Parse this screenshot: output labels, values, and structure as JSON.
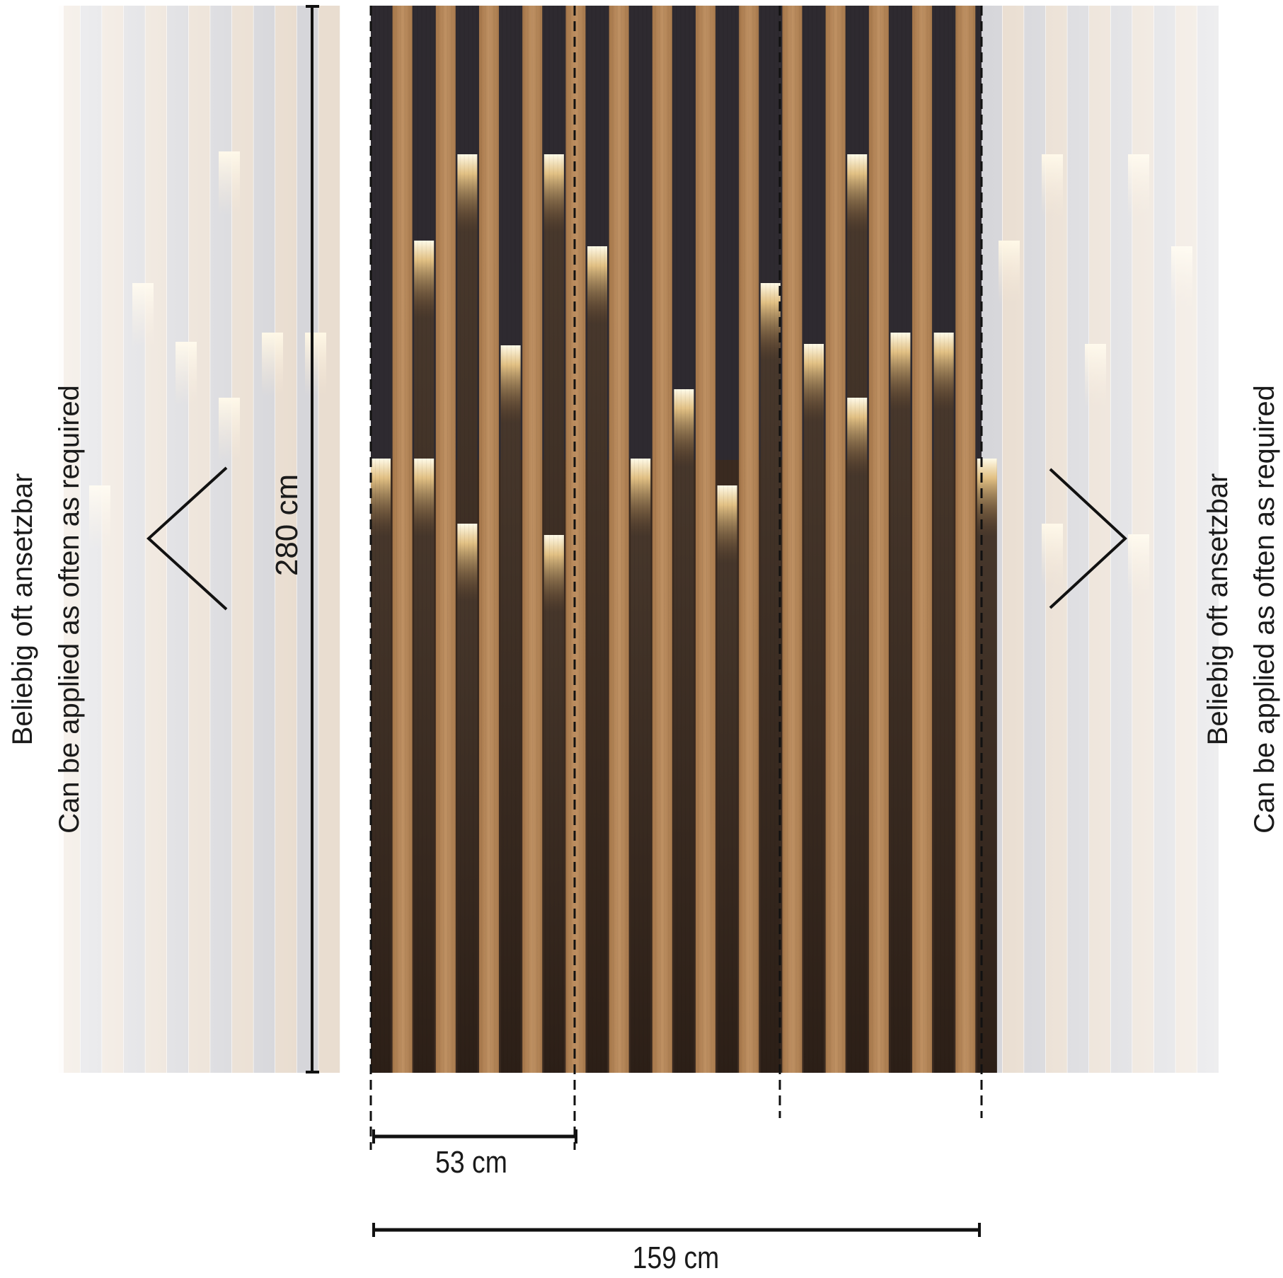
{
  "labels": {
    "left_line1": "Beliebig oft ansetzbar",
    "left_line2": "Can be applied as often as required",
    "right_line1": "Beliebig oft ansetzbar",
    "right_line2": "Can be applied as often as required"
  },
  "dimensions": {
    "height": "280 cm",
    "panel_width": "53 cm",
    "total_width": "159 cm"
  },
  "panels": {
    "count": 3
  },
  "colors": {
    "light_wood": "#b98a5a",
    "dark_wood": "#3d2b1f",
    "back_panel": "#2e2a30",
    "light_glow": "#fff6d8",
    "line": "#111111"
  }
}
